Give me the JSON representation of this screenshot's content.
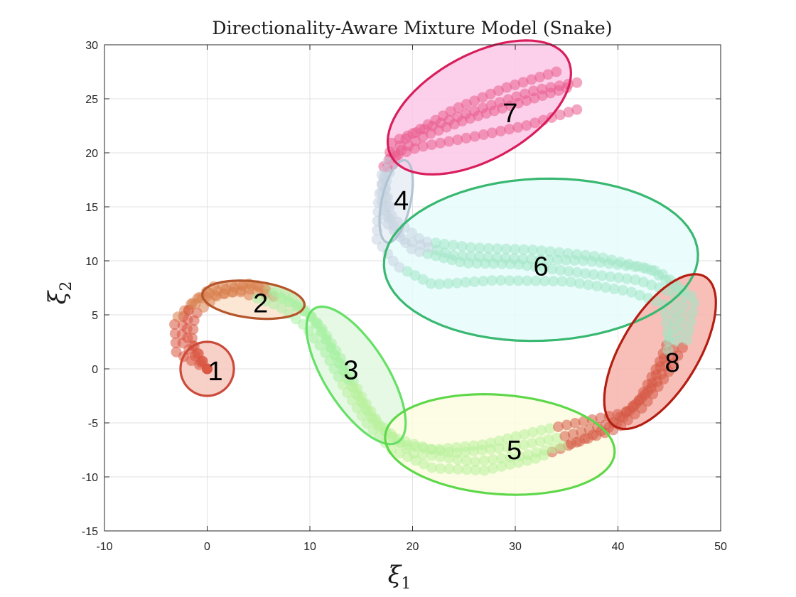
{
  "chart_data": {
    "type": "scatter",
    "title": "Directionality-Aware Mixture Model (Snake)",
    "xlabel": "ξ",
    "xlabel_sub": "1",
    "ylabel": "ξ",
    "ylabel_sub": "2",
    "xlim": [
      -10,
      50
    ],
    "ylim": [
      -15,
      30
    ],
    "xticks": [
      -10,
      0,
      10,
      20,
      30,
      40,
      50
    ],
    "yticks": [
      -15,
      -10,
      -5,
      0,
      5,
      10,
      15,
      20,
      25,
      30
    ],
    "grid": true,
    "clusters": [
      {
        "label": "1",
        "center": [
          0,
          0
        ],
        "semi_axes": [
          2.6,
          2.5
        ],
        "angle_deg": 0,
        "edge": "#cc4a3a",
        "fill": "#f6c8be",
        "label_pos": [
          0.8,
          -0.2
        ]
      },
      {
        "label": "2",
        "center": [
          4.5,
          6.4
        ],
        "semi_axes": [
          5.0,
          1.7
        ],
        "angle_deg": -6,
        "edge": "#b5552a",
        "fill": "#fbe2cc",
        "label_pos": [
          5.2,
          6.1
        ]
      },
      {
        "label": "3",
        "center": [
          14.5,
          -0.6
        ],
        "semi_axes": [
          7.4,
          3.0
        ],
        "angle_deg": -56,
        "edge": "#66e066",
        "fill": "#e0f8e0",
        "label_pos": [
          14.0,
          -0.1
        ]
      },
      {
        "label": "4",
        "center": [
          18.4,
          15.5
        ],
        "semi_axes": [
          3.9,
          1.4
        ],
        "angle_deg": 77,
        "edge": "#b0c4d4",
        "fill": "#e6edf3",
        "label_pos": [
          18.9,
          15.6
        ]
      },
      {
        "label": "5",
        "center": [
          28.5,
          -7.0
        ],
        "semi_axes": [
          11.2,
          4.6
        ],
        "angle_deg": -4,
        "edge": "#5ed84a",
        "fill": "#fdfde0",
        "label_pos": [
          29.9,
          -7.5
        ]
      },
      {
        "label": "6",
        "center": [
          32.5,
          10.1
        ],
        "semi_axes": [
          15.3,
          7.5
        ],
        "angle_deg": 2,
        "edge": "#38b870",
        "fill": "#e6fcfc",
        "label_pos": [
          32.5,
          9.5
        ]
      },
      {
        "label": "7",
        "center": [
          26.5,
          24.2
        ],
        "semi_axes": [
          9.7,
          4.9
        ],
        "angle_deg": 27,
        "edge": "#d81e5b",
        "fill": "#fbc8e6",
        "label_pos": [
          29.5,
          23.7
        ]
      },
      {
        "label": "8",
        "center": [
          44.1,
          1.6
        ],
        "semi_axes": [
          8.2,
          3.7
        ],
        "angle_deg": 57,
        "edge": "#b41e12",
        "fill": "#f6b4ab",
        "label_pos": [
          45.3,
          0.6
        ]
      }
    ],
    "trajectories": [
      {
        "name": "",
        "points": [
          [
            0,
            0
          ],
          [
            -1.5,
            2.5
          ],
          [
            -1.2,
            5
          ],
          [
            1,
            6.8
          ],
          [
            4,
            7.4
          ],
          [
            7.5,
            6.4
          ],
          [
            9.5,
            5.3
          ],
          [
            11,
            4
          ],
          [
            13,
            1
          ],
          [
            15,
            -2.5
          ],
          [
            17,
            -5.5
          ],
          [
            19,
            -7
          ],
          [
            24,
            -7.8
          ],
          [
            30,
            -7.2
          ],
          [
            35,
            -6.2
          ],
          [
            39.5,
            -5
          ],
          [
            42,
            -3
          ],
          [
            44,
            0.5
          ],
          [
            45.5,
            4
          ],
          [
            45.5,
            7
          ],
          [
            42,
            8.2
          ],
          [
            37,
            8.8
          ],
          [
            30,
            9.7
          ],
          [
            25,
            9.8
          ],
          [
            20,
            11
          ],
          [
            17.5,
            13.5
          ],
          [
            17.3,
            17
          ],
          [
            18.5,
            20
          ],
          [
            21,
            21.5
          ],
          [
            25,
            23
          ],
          [
            30,
            24.5
          ],
          [
            35,
            26
          ]
        ]
      },
      {
        "name": "",
        "points": [
          [
            0,
            0
          ],
          [
            -2.5,
            2.5
          ],
          [
            -2.3,
            5
          ],
          [
            0,
            7
          ],
          [
            4,
            7.8
          ],
          [
            8,
            6.9
          ],
          [
            10,
            5
          ],
          [
            12,
            2
          ],
          [
            14,
            -1.5
          ],
          [
            16,
            -4.5
          ],
          [
            18.5,
            -6.5
          ],
          [
            22,
            -7.5
          ],
          [
            27,
            -7
          ],
          [
            32,
            -5.8
          ],
          [
            37,
            -4.8
          ],
          [
            41,
            -4
          ],
          [
            44,
            -1
          ],
          [
            46,
            3
          ],
          [
            46.5,
            7
          ],
          [
            43,
            9.3
          ],
          [
            37,
            10
          ],
          [
            30,
            10.2
          ],
          [
            24,
            10.5
          ],
          [
            19,
            12
          ],
          [
            17,
            15
          ],
          [
            17,
            18.5
          ],
          [
            19.5,
            21.5
          ],
          [
            24,
            24
          ],
          [
            29,
            26
          ],
          [
            34,
            27.5
          ]
        ]
      },
      {
        "name": "",
        "points": [
          [
            0,
            0
          ],
          [
            -3,
            1.5
          ],
          [
            -3.2,
            4.5
          ],
          [
            -1,
            6.5
          ],
          [
            3,
            7.2
          ],
          [
            7,
            5.8
          ],
          [
            9.5,
            4
          ],
          [
            11.5,
            1.5
          ],
          [
            13.5,
            -2
          ],
          [
            15.5,
            -5
          ],
          [
            18,
            -7.5
          ],
          [
            22,
            -9.2
          ],
          [
            27,
            -9.4
          ],
          [
            32,
            -8.3
          ],
          [
            36.5,
            -6.6
          ],
          [
            40,
            -5
          ],
          [
            43,
            -2
          ],
          [
            45,
            2
          ],
          [
            44.5,
            6
          ],
          [
            41,
            7.2
          ],
          [
            35,
            8.1
          ],
          [
            28,
            8.2
          ],
          [
            22,
            7.8
          ],
          [
            18.5,
            9.5
          ],
          [
            16.5,
            12
          ],
          [
            16.7,
            16
          ],
          [
            17.8,
            19.5
          ],
          [
            20.5,
            20.5
          ],
          [
            26,
            21.5
          ],
          [
            31,
            22.5
          ],
          [
            36,
            24
          ]
        ]
      },
      {
        "name": "",
        "points": [
          [
            0,
            0
          ],
          [
            -2,
            3
          ],
          [
            -1.8,
            5.8
          ],
          [
            0.5,
            7.6
          ],
          [
            4.5,
            7.9
          ],
          [
            8.5,
            6
          ],
          [
            10.5,
            4.6
          ],
          [
            12.5,
            1.2
          ],
          [
            14.5,
            -2.2
          ],
          [
            16.5,
            -5.2
          ],
          [
            20,
            -7.8
          ],
          [
            26,
            -8.6
          ],
          [
            31,
            -8
          ],
          [
            36,
            -6.8
          ],
          [
            40,
            -5.5
          ],
          [
            42.5,
            -3.5
          ],
          [
            44.8,
            -0.5
          ],
          [
            46.8,
            2.8
          ],
          [
            47.5,
            6.5
          ],
          [
            44,
            9
          ],
          [
            38,
            10.4
          ],
          [
            32,
            11
          ],
          [
            26,
            11.2
          ],
          [
            21,
            11.8
          ],
          [
            18,
            14
          ],
          [
            17.2,
            17.5
          ],
          [
            18,
            21
          ],
          [
            22,
            22.5
          ],
          [
            27,
            24.2
          ],
          [
            32,
            25.8
          ],
          [
            36,
            26.5
          ]
        ]
      }
    ],
    "trajectory_colors": [
      {
        "from": -4,
        "to": 3,
        "color": "#d9533f"
      },
      {
        "from": 3,
        "to": 6.5,
        "color": "#d98a55"
      },
      {
        "from": 6.5,
        "to": 11,
        "color": "#b6f2b0"
      },
      {
        "from": 11,
        "to": 16,
        "color": "#b6f2b0"
      },
      {
        "from": 16,
        "to": 18,
        "color": "#a6f0a0"
      },
      {
        "from": 18,
        "to": 22,
        "color": "#a6f0a0"
      },
      {
        "from": 22,
        "to": 24.5,
        "color": "#9ee8c8"
      },
      {
        "from": 24.5,
        "to": 27,
        "color": "#c4d2de"
      },
      {
        "from": 27,
        "to": 31,
        "color": "#e85a8c"
      }
    ]
  }
}
